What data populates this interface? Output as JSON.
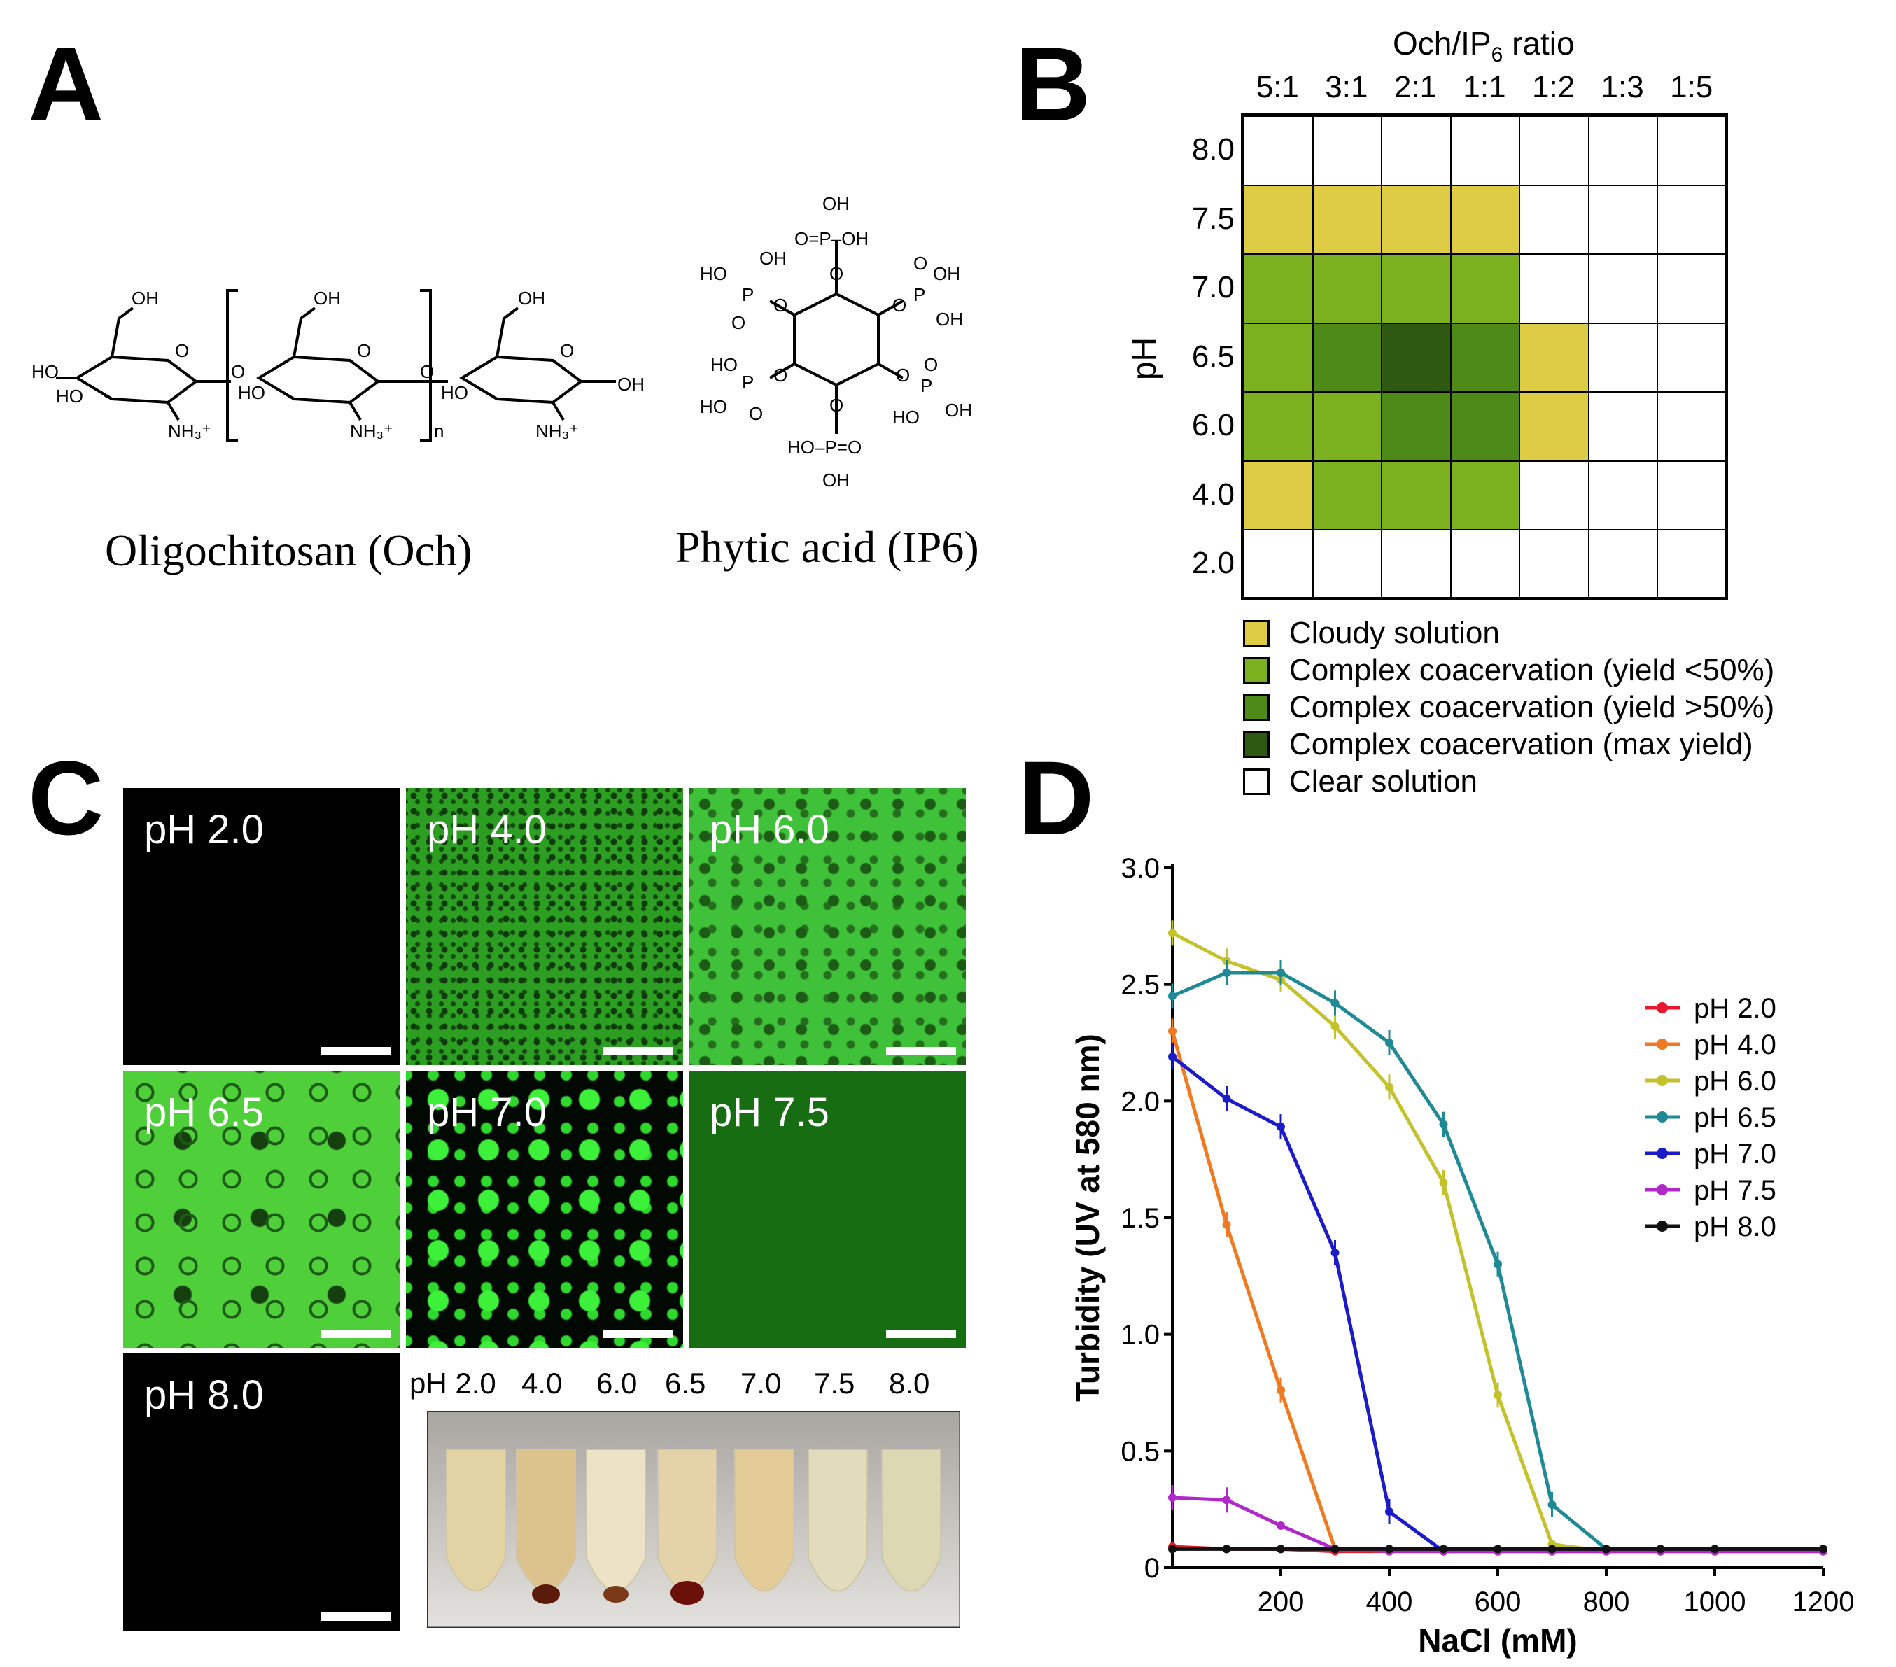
{
  "panels": {
    "A": {
      "label": "A",
      "och_name": "Oligochitosan (Och)",
      "ip6_name": "Phytic acid (IP6)"
    },
    "B": {
      "label": "B",
      "title_prefix": "Och/IP",
      "title_subscript": "6",
      "title_suffix": " ratio",
      "y_axis_label": "pH",
      "ratios": [
        "5:1",
        "3:1",
        "2:1",
        "1:1",
        "1:2",
        "1:3",
        "1:5"
      ],
      "ph_rows": [
        "8.0",
        "7.5",
        "7.0",
        "6.5",
        "6.0",
        "4.0",
        "2.0"
      ],
      "grid": [
        [
          0,
          0,
          0,
          0,
          0,
          0,
          0
        ],
        [
          1,
          1,
          1,
          1,
          0,
          0,
          0
        ],
        [
          2,
          2,
          2,
          2,
          0,
          0,
          0
        ],
        [
          2,
          3,
          4,
          3,
          1,
          0,
          0
        ],
        [
          2,
          2,
          3,
          3,
          1,
          0,
          0
        ],
        [
          1,
          2,
          2,
          2,
          0,
          0,
          0
        ],
        [
          0,
          0,
          0,
          0,
          0,
          0,
          0
        ]
      ],
      "state_colors": [
        "#ffffff",
        "#dfcc45",
        "#7bb11f",
        "#4d8a17",
        "#2d5a10"
      ],
      "legend": [
        {
          "label": "Cloudy solution",
          "color": "#dfcc45"
        },
        {
          "label": "Complex coacervation (yield <50%)",
          "color": "#7bb11f"
        },
        {
          "label": "Complex coacervation (yield >50%)",
          "color": "#4d8a17"
        },
        {
          "label": "Complex coacervation (max yield)",
          "color": "#2d5a10"
        },
        {
          "label": "Clear solution",
          "color": "#ffffff"
        }
      ]
    },
    "C": {
      "label": "C",
      "images": [
        {
          "label": "pH 2.0"
        },
        {
          "label": "pH 4.0"
        },
        {
          "label": "pH 6.0"
        },
        {
          "label": "pH 6.5"
        },
        {
          "label": "pH 7.0"
        },
        {
          "label": "pH 7.5"
        },
        {
          "label": "pH 8.0"
        }
      ],
      "tube_labels": [
        "pH 2.0",
        "4.0",
        "6.0",
        "6.5",
        "7.0",
        "7.5",
        "8.0"
      ]
    },
    "D": {
      "label": "D"
    }
  },
  "chart_data": {
    "type": "line",
    "title": "",
    "xlabel": "NaCl (mM)",
    "ylabel": "Turbidity (UV at 580 nm)",
    "xlim": [
      0,
      1200
    ],
    "ylim": [
      0,
      3.0
    ],
    "xticks": [
      "200",
      "400",
      "600",
      "800",
      "1000",
      "1200"
    ],
    "yticks": [
      "0",
      "0.5",
      "1.0",
      "1.5",
      "2.0",
      "2.5",
      "3.0"
    ],
    "x": [
      0,
      100,
      200,
      300,
      400,
      500,
      600,
      700,
      800,
      900,
      1000,
      1200
    ],
    "series": [
      {
        "name": "pH 2.0",
        "color": "#e8192c",
        "values": [
          0.09,
          0.08,
          0.08,
          0.07,
          0.07,
          0.07,
          0.07,
          0.07,
          0.07,
          0.07,
          0.07,
          0.08
        ]
      },
      {
        "name": "pH 4.0",
        "color": "#f07a22",
        "values": [
          2.3,
          1.47,
          0.76,
          0.08,
          0.07,
          0.07,
          0.07,
          0.07,
          0.07,
          0.07,
          0.07,
          0.07
        ]
      },
      {
        "name": "pH 6.0",
        "color": "#c4c22c",
        "values": [
          2.72,
          2.6,
          2.52,
          2.32,
          2.06,
          1.65,
          0.74,
          0.1,
          0.07,
          0.07,
          0.07,
          0.07
        ]
      },
      {
        "name": "pH 6.5",
        "color": "#1f8a96",
        "values": [
          2.45,
          2.55,
          2.55,
          2.42,
          2.25,
          1.9,
          1.3,
          0.27,
          0.08,
          0.08,
          0.07,
          0.07
        ]
      },
      {
        "name": "pH 7.0",
        "color": "#1b1bc8",
        "values": [
          2.19,
          2.01,
          1.89,
          1.35,
          0.24,
          0.07,
          0.07,
          0.07,
          0.07,
          0.07,
          0.07,
          0.07
        ]
      },
      {
        "name": "pH 7.5",
        "color": "#b028c8",
        "values": [
          0.3,
          0.29,
          0.18,
          0.08,
          0.07,
          0.07,
          0.07,
          0.07,
          0.07,
          0.07,
          0.07,
          0.07
        ]
      },
      {
        "name": "pH 8.0",
        "color": "#111111",
        "values": [
          0.08,
          0.08,
          0.08,
          0.08,
          0.08,
          0.08,
          0.08,
          0.08,
          0.08,
          0.08,
          0.08,
          0.08
        ]
      }
    ]
  }
}
